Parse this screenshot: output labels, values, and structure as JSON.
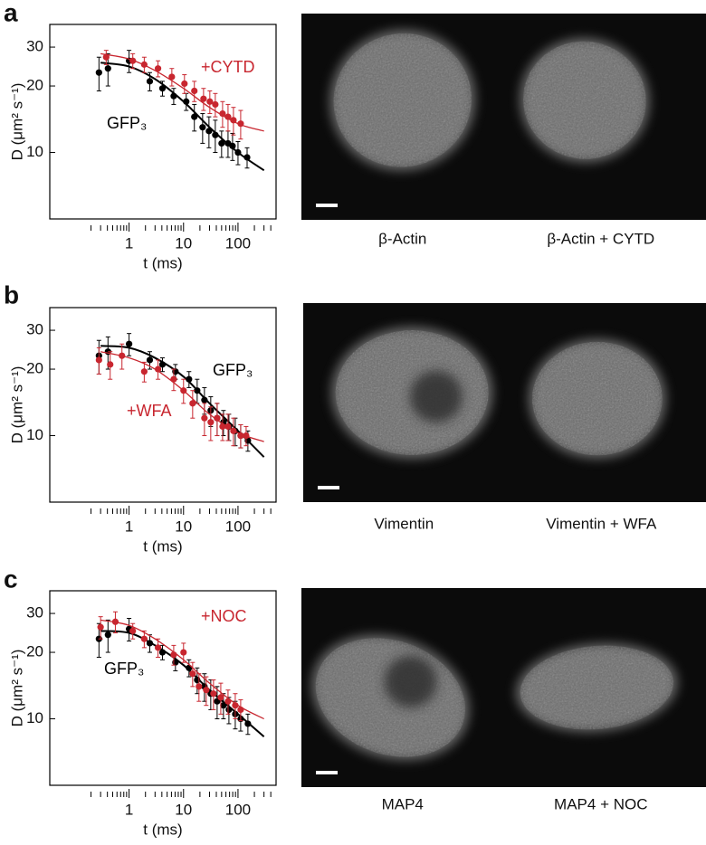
{
  "chart_data": [
    {
      "type": "scatter",
      "xscale": "log",
      "yscale": "log",
      "x_label": "t (ms)",
      "y_label": "D (μm² s⁻¹)",
      "xlim": [
        0.035,
        500
      ],
      "ylim": [
        5,
        38
      ],
      "xticks": [
        1,
        10,
        100
      ],
      "xminorticks": [
        0.2,
        0.3,
        0.4,
        0.5,
        0.6,
        0.7,
        0.8,
        0.9,
        2,
        3,
        4,
        5,
        6,
        7,
        8,
        9,
        20,
        30,
        40,
        50,
        60,
        70,
        80,
        90,
        200,
        300,
        400
      ],
      "yticks": [
        10,
        20,
        30
      ],
      "fit_x": [
        0.3,
        1,
        3,
        10,
        30,
        100,
        300
      ],
      "series": [
        {
          "name": "GFP₃",
          "color": "#000000",
          "x": [
            0.28,
            0.41,
            1,
            2.4,
            4.1,
            6.6,
            11.2,
            15.8,
            22.4,
            29.3,
            38.3,
            50,
            65.6,
            79.4,
            100,
            147
          ],
          "values": [
            23,
            24,
            26,
            21,
            19.5,
            18,
            17,
            14.5,
            13,
            12.5,
            12,
            11,
            11,
            10.7,
            10,
            9.5
          ],
          "errors": [
            4,
            4,
            3,
            2,
            1.5,
            1.5,
            1.5,
            2,
            2,
            2,
            2,
            1.5,
            1.5,
            1.5,
            1.2,
            1
          ],
          "fit": [
            25.5,
            24.5,
            21.5,
            17,
            13,
            10,
            8.3
          ]
        },
        {
          "name": "+CYTD",
          "color": "#c8262f",
          "x": [
            0.38,
            1.17,
            1.9,
            3.4,
            6.1,
            10.4,
            15.8,
            23.3,
            30.4,
            38.3,
            52.1,
            65.6,
            82.5,
            112
          ],
          "values": [
            27,
            26,
            25,
            24,
            22,
            20.5,
            19,
            17.5,
            17,
            16.5,
            15,
            14.5,
            14,
            13.5
          ],
          "errors": [
            2,
            2,
            2,
            2,
            2,
            2,
            2,
            2,
            2,
            2,
            2,
            2,
            2,
            2
          ],
          "fit": [
            28,
            26.5,
            23.5,
            19.5,
            16,
            13.5,
            12.5
          ]
        }
      ]
    },
    {
      "type": "scatter",
      "xscale": "log",
      "yscale": "log",
      "x_label": "t (ms)",
      "y_label": "D (μm² s⁻¹)",
      "xlim": [
        0.035,
        500
      ],
      "ylim": [
        5,
        38
      ],
      "xticks": [
        1,
        10,
        100
      ],
      "xminorticks": [
        0.2,
        0.3,
        0.4,
        0.5,
        0.6,
        0.7,
        0.8,
        0.9,
        2,
        3,
        4,
        5,
        6,
        7,
        8,
        9,
        20,
        30,
        40,
        50,
        60,
        70,
        80,
        90,
        200,
        300,
        400
      ],
      "yticks": [
        10,
        20,
        30
      ],
      "fit_x": [
        0.3,
        1,
        3,
        10,
        30,
        100,
        300
      ],
      "series": [
        {
          "name": "GFP₃",
          "color": "#000000",
          "x": [
            0.28,
            0.41,
            1,
            2.4,
            4.1,
            7.1,
            12.6,
            17.8,
            24.2,
            31.6,
            41.4,
            54.1,
            68.1,
            89.1,
            112,
            152
          ],
          "values": [
            23,
            24,
            26,
            22,
            21,
            19.5,
            18,
            16,
            14.5,
            13,
            12,
            11.5,
            11,
            10.5,
            10,
            9.5
          ],
          "errors": [
            4,
            4,
            3,
            2,
            1.5,
            1.5,
            1.5,
            2,
            2,
            2,
            2,
            1.5,
            1.5,
            1.5,
            1.2,
            1
          ],
          "fit": [
            25.5,
            25,
            22.5,
            18.5,
            14,
            10.5,
            8
          ]
        },
        {
          "name": "+WFA",
          "color": "#c8262f",
          "x": [
            0.28,
            0.45,
            0.74,
            1.9,
            3.4,
            6.6,
            10,
            14.7,
            24.2,
            31.6,
            41.4,
            52.1,
            65.6,
            82.5,
            112,
            141
          ],
          "values": [
            22,
            21,
            23,
            19.5,
            20,
            18,
            16,
            14,
            12,
            11.5,
            12,
            11,
            11,
            10.5,
            10,
            10
          ],
          "errors": [
            3,
            3,
            3,
            2,
            2,
            2,
            2,
            2,
            2,
            2,
            2,
            1.5,
            1.5,
            1.5,
            1.2,
            1
          ],
          "fit": [
            24,
            22.5,
            20,
            16,
            12.5,
            10.3,
            9.4
          ]
        }
      ]
    },
    {
      "type": "scatter",
      "xscale": "log",
      "yscale": "log",
      "x_label": "t (ms)",
      "y_label": "D (μm² s⁻¹)",
      "xlim": [
        0.035,
        500
      ],
      "ylim": [
        5,
        38
      ],
      "xticks": [
        1,
        10,
        100
      ],
      "xminorticks": [
        0.2,
        0.3,
        0.4,
        0.5,
        0.6,
        0.7,
        0.8,
        0.9,
        2,
        3,
        4,
        5,
        6,
        7,
        8,
        9,
        20,
        30,
        40,
        50,
        60,
        70,
        80,
        90,
        200,
        300,
        400
      ],
      "yticks": [
        10,
        20,
        30
      ],
      "fit_x": [
        0.3,
        1,
        3,
        10,
        30,
        100,
        300
      ],
      "series": [
        {
          "name": "GFP₃",
          "color": "#000000",
          "x": [
            0.28,
            0.41,
            1,
            2.4,
            4.1,
            7.1,
            12.6,
            17.8,
            24.2,
            31.6,
            41.4,
            54.1,
            68.1,
            89.1,
            112,
            152
          ],
          "values": [
            23,
            24,
            25.5,
            22,
            20,
            18,
            17,
            15,
            14,
            13,
            12,
            11.5,
            11,
            10.5,
            10,
            9.5
          ],
          "errors": [
            4,
            4,
            3,
            2,
            1.5,
            1.5,
            1.5,
            2,
            2,
            2,
            2,
            1.5,
            1.5,
            1.5,
            1.2,
            1
          ],
          "fit": [
            25,
            24.5,
            21.5,
            17.5,
            13.5,
            10.5,
            8.3
          ]
        },
        {
          "name": "+NOC",
          "color": "#c8262f",
          "x": [
            0.3,
            0.56,
            1.17,
            1.9,
            3.4,
            6.6,
            10,
            14.7,
            19.2,
            26.1,
            35.5,
            48.3,
            65.6,
            89.1,
            112
          ],
          "values": [
            26,
            27.5,
            25,
            23,
            21,
            19.5,
            20,
            16,
            14,
            13.5,
            13,
            12.5,
            12,
            11.5,
            11
          ],
          "errors": [
            3,
            3,
            2,
            2,
            2,
            2,
            2,
            2,
            2,
            2,
            2,
            2,
            1.5,
            1.5,
            1.2
          ],
          "fit": [
            28,
            26.5,
            23,
            18.5,
            14.5,
            11.5,
            10
          ]
        }
      ]
    }
  ],
  "panels": [
    {
      "label": "a",
      "captions": [
        "β-Actin",
        "β-Actin + CYTD"
      ]
    },
    {
      "label": "b",
      "captions": [
        "Vimentin",
        "Vimentin + WFA"
      ]
    },
    {
      "label": "c",
      "captions": [
        "MAP4",
        "MAP4 + NOC"
      ]
    }
  ]
}
